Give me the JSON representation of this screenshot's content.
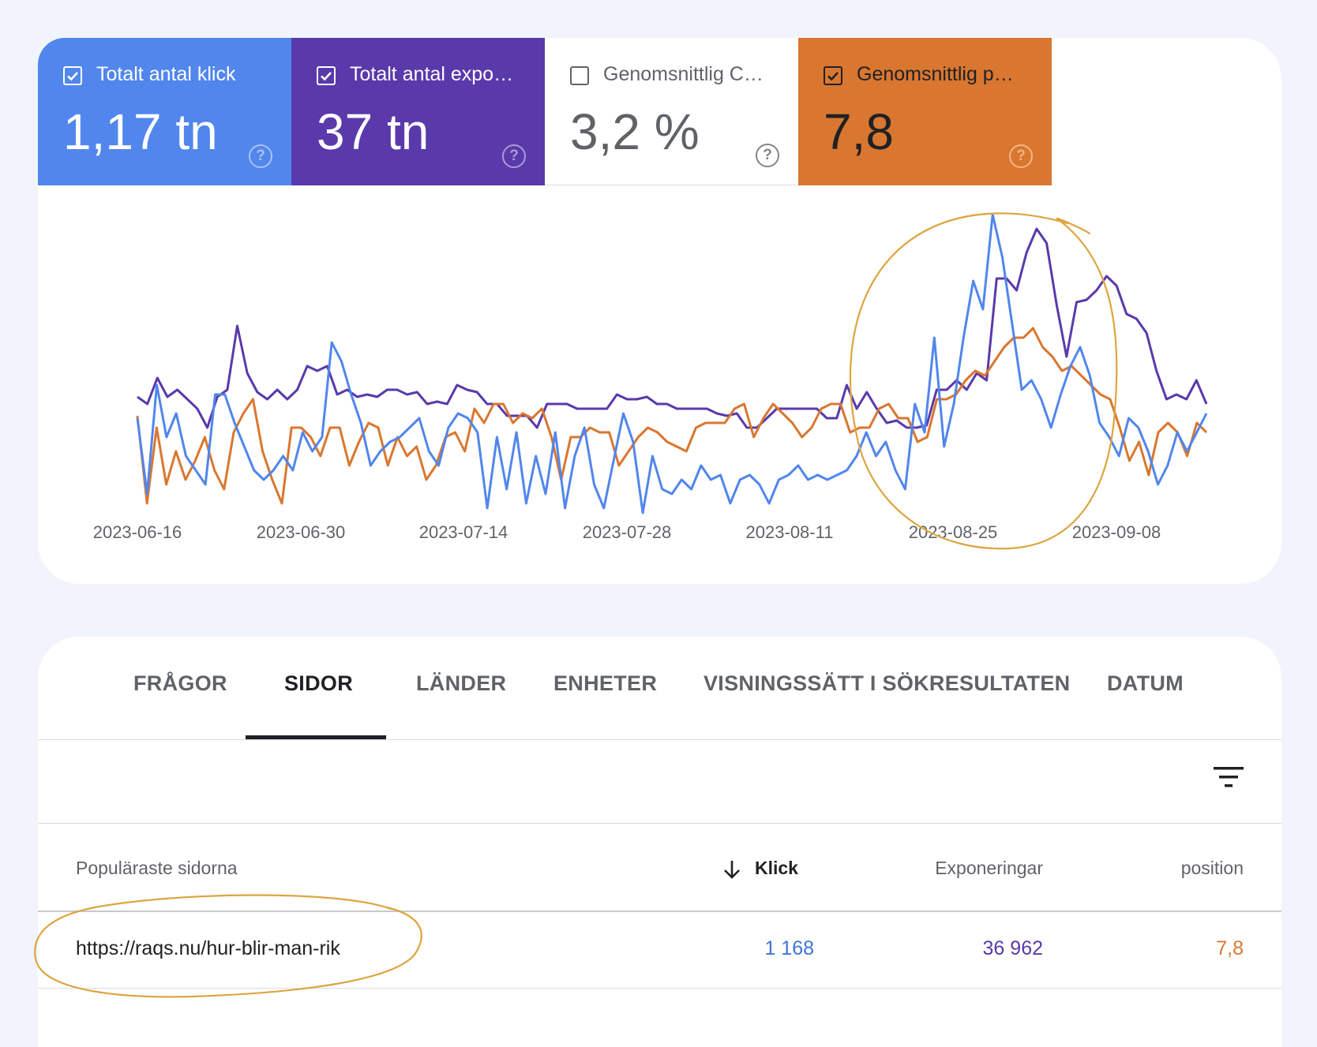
{
  "metrics": [
    {
      "label": "Totalt antal klick",
      "value": "1,17 tn",
      "checked": true,
      "color": "#5186ec"
    },
    {
      "label": "Totalt antal expo…",
      "value": "37 tn",
      "checked": true,
      "color": "#5a39ab"
    },
    {
      "label": "Genomsnittlig C…",
      "value": "3,2 %",
      "checked": false,
      "color": "#ffffff"
    },
    {
      "label": "Genomsnittlig p…",
      "value": "7,8",
      "checked": true,
      "color": "#d97730"
    }
  ],
  "help_glyph": "?",
  "chart_data": {
    "type": "line",
    "x_tick_labels": [
      "2023-06-16",
      "2023-06-30",
      "2023-07-14",
      "2023-07-28",
      "2023-08-11",
      "2023-08-25",
      "2023-09-08"
    ],
    "x_range": [
      "2023-06-16",
      "2023-09-15"
    ],
    "grid": false,
    "legend": "none",
    "series": [
      {
        "color": "#5a39ab",
        "values": [
          0.35,
          0.32,
          0.43,
          0.35,
          0.38,
          0.34,
          0.3,
          0.22,
          0.35,
          0.38,
          0.65,
          0.45,
          0.37,
          0.34,
          0.38,
          0.34,
          0.38,
          0.48,
          0.46,
          0.48,
          0.36,
          0.38,
          0.35,
          0.36,
          0.35,
          0.38,
          0.38,
          0.36,
          0.37,
          0.32,
          0.33,
          0.32,
          0.4,
          0.38,
          0.37,
          0.32,
          0.32,
          0.27,
          0.27,
          0.27,
          0.22,
          0.32,
          0.32,
          0.32,
          0.3,
          0.3,
          0.3,
          0.3,
          0.36,
          0.34,
          0.34,
          0.35,
          0.32,
          0.32,
          0.3,
          0.3,
          0.3,
          0.3,
          0.28,
          0.27,
          0.28,
          0.22,
          0.22,
          0.26,
          0.3,
          0.3,
          0.3,
          0.3,
          0.3,
          0.26,
          0.26,
          0.4,
          0.3,
          0.37,
          0.3,
          0.24,
          0.25,
          0.22,
          0.22,
          0.23,
          0.38,
          0.38,
          0.42,
          0.38,
          0.45,
          0.42,
          0.85,
          0.85,
          0.8,
          0.96,
          1.06,
          1.0,
          0.74,
          0.52,
          0.75,
          0.76,
          0.8,
          0.86,
          0.82,
          0.7,
          0.68,
          0.62,
          0.46,
          0.34,
          0.36,
          0.34,
          0.42,
          0.32
        ]
      },
      {
        "color": "#d97730",
        "values": [
          0.27,
          -0.1,
          0.22,
          -0.02,
          0.12,
          0.0,
          0.08,
          0.18,
          0.04,
          -0.04,
          0.2,
          0.28,
          0.34,
          0.12,
          0.0,
          -0.1,
          0.22,
          0.22,
          0.18,
          0.1,
          0.22,
          0.22,
          0.06,
          0.16,
          0.24,
          0.22,
          0.06,
          0.18,
          0.1,
          0.14,
          0.0,
          0.06,
          0.18,
          0.2,
          0.12,
          0.3,
          0.24,
          0.32,
          0.32,
          0.24,
          0.28,
          0.26,
          0.3,
          0.18,
          0.0,
          0.18,
          0.18,
          0.22,
          0.2,
          0.2,
          0.06,
          0.12,
          0.18,
          0.22,
          0.2,
          0.16,
          0.14,
          0.12,
          0.22,
          0.24,
          0.24,
          0.24,
          0.3,
          0.32,
          0.18,
          0.26,
          0.32,
          0.28,
          0.24,
          0.18,
          0.22,
          0.3,
          0.32,
          0.32,
          0.2,
          0.22,
          0.22,
          0.3,
          0.32,
          0.26,
          0.26,
          0.16,
          0.18,
          0.34,
          0.34,
          0.36,
          0.42,
          0.46,
          0.44,
          0.5,
          0.56,
          0.6,
          0.6,
          0.64,
          0.56,
          0.52,
          0.46,
          0.48,
          0.44,
          0.4,
          0.36,
          0.34,
          0.22,
          0.08,
          0.16,
          0.02,
          0.2,
          0.24,
          0.2,
          0.1,
          0.24,
          0.2
        ]
      },
      {
        "color": "#5186ec",
        "values": [
          0.26,
          -0.06,
          0.4,
          0.18,
          0.28,
          0.1,
          0.04,
          -0.02,
          0.36,
          0.36,
          0.24,
          0.14,
          0.04,
          0.0,
          0.04,
          0.1,
          0.04,
          0.2,
          0.12,
          0.18,
          0.58,
          0.5,
          0.36,
          0.24,
          0.06,
          0.12,
          0.16,
          0.18,
          0.22,
          0.26,
          0.12,
          0.06,
          0.22,
          0.28,
          0.26,
          0.2,
          -0.12,
          0.18,
          -0.04,
          0.2,
          -0.1,
          0.1,
          -0.06,
          0.2,
          -0.12,
          0.1,
          0.22,
          -0.02,
          -0.12,
          0.08,
          0.28,
          0.16,
          -0.14,
          0.1,
          -0.04,
          -0.06,
          0.0,
          -0.04,
          0.06,
          0.0,
          0.02,
          -0.1,
          0.0,
          0.02,
          -0.02,
          -0.1,
          0.0,
          0.02,
          0.06,
          0.0,
          0.02,
          0.0,
          0.02,
          0.04,
          0.1,
          0.2,
          0.1,
          0.16,
          0.04,
          -0.04,
          0.32,
          0.2,
          0.6,
          0.14,
          0.32,
          0.6,
          0.84,
          0.72,
          1.12,
          0.94,
          0.66,
          0.38,
          0.42,
          0.34,
          0.22,
          0.36,
          0.48,
          0.56,
          0.44,
          0.24,
          0.18,
          0.1,
          0.26,
          0.22,
          0.12,
          -0.02,
          0.06,
          0.2,
          0.12,
          0.2,
          0.28
        ]
      }
    ]
  },
  "tabs": [
    "FRÅGOR",
    "SIDOR",
    "LÄNDER",
    "ENHETER",
    "VISNINGSSÄTT I SÖKRESULTATEN",
    "DATUM"
  ],
  "active_tab": "SIDOR",
  "table": {
    "headers": {
      "page": "Populäraste sidorna",
      "clicks": "Klick",
      "impressions": "Exponeringar",
      "position": "position"
    },
    "rows": [
      {
        "page": "https://raqs.nu/hur-blir-man-rik",
        "clicks": "1 168",
        "impressions": "36 962",
        "position": "7,8"
      }
    ]
  },
  "colors": {
    "clicks": "#3f73d9",
    "impressions": "#5a39ab",
    "position": "#d97730",
    "annotation": "#dca540"
  }
}
